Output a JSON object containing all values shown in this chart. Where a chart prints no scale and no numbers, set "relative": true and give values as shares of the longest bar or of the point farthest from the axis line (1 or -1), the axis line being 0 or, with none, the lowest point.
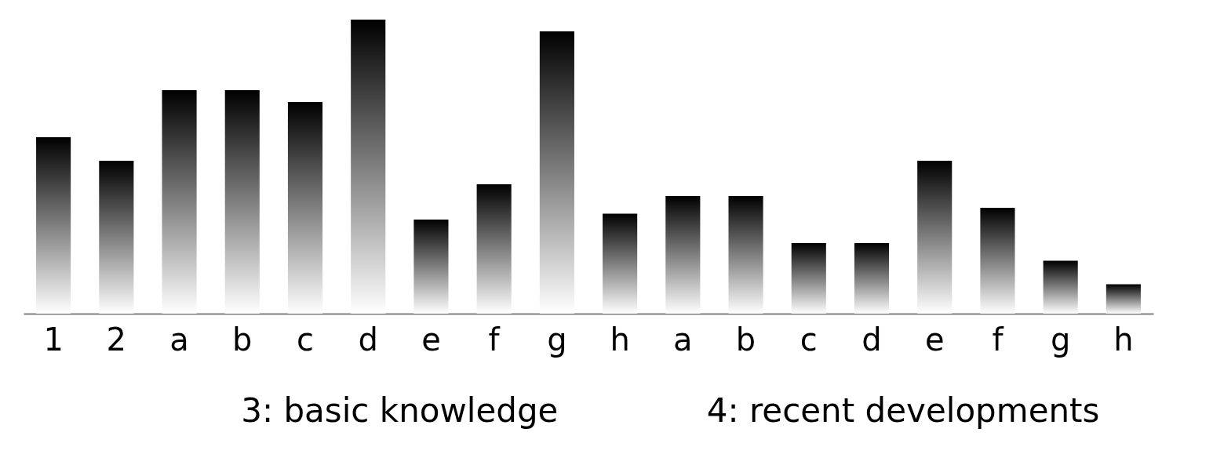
{
  "chart_data": {
    "type": "bar",
    "relative": true,
    "categories": [
      "1",
      "2",
      "a",
      "b",
      "c",
      "d",
      "e",
      "f",
      "g",
      "h",
      "a",
      "b",
      "c",
      "d",
      "e",
      "f",
      "g",
      "h"
    ],
    "values": [
      0.6,
      0.52,
      0.76,
      0.76,
      0.72,
      1,
      0.32,
      0.44,
      0.96,
      0.34,
      0.4,
      0.4,
      0.24,
      0.24,
      0.52,
      0.36,
      0.18,
      0.1
    ],
    "color": "#000000",
    "annotations": [
      "3: basic knowledge",
      "4: recent developments"
    ],
    "grid": false
  }
}
